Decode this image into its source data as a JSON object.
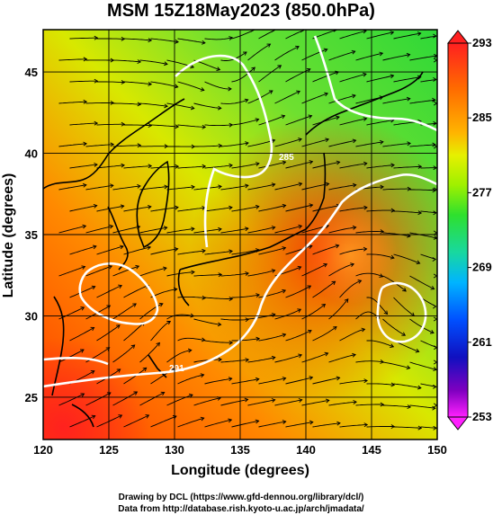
{
  "title": "MSM 15Z18May2023 (850.0hPa)",
  "xlabel": "Longitude (degrees)",
  "ylabel": "Latitude  (degrees)",
  "credits": [
    "Drawing by DCL (https://www.gfd-dennou.org/library/dcl/)",
    "Data from http://database.rish.kyoto-u.ac.jp/arch/jmadata/"
  ],
  "map": {
    "lon_range": [
      120,
      150
    ],
    "lat_range": [
      22.4,
      47.6
    ],
    "lon_ticks": [
      "120",
      "125",
      "130",
      "135",
      "140",
      "145",
      "150"
    ],
    "lat_ticks": [
      "25",
      "30",
      "35",
      "40",
      "45"
    ],
    "grid": true,
    "variable": "temperature (K)",
    "contour_labels": [
      "285",
      "291"
    ]
  },
  "colorbar": {
    "levels": [
      "293",
      "285",
      "277",
      "269",
      "261",
      "253"
    ],
    "colors": [
      "#ff2020",
      "#ff6a00",
      "#ffb400",
      "#e6f000",
      "#9ef000",
      "#2ee02e",
      "#18d8a0",
      "#00b4ff",
      "#0050ff",
      "#1010c0",
      "#8000c0",
      "#ff20ff"
    ]
  },
  "colors": {
    "warm": "#ff3a00",
    "mid": "#cfe800",
    "cool": "#38d838",
    "contour": "#ffffff",
    "streamline": "#000000"
  }
}
